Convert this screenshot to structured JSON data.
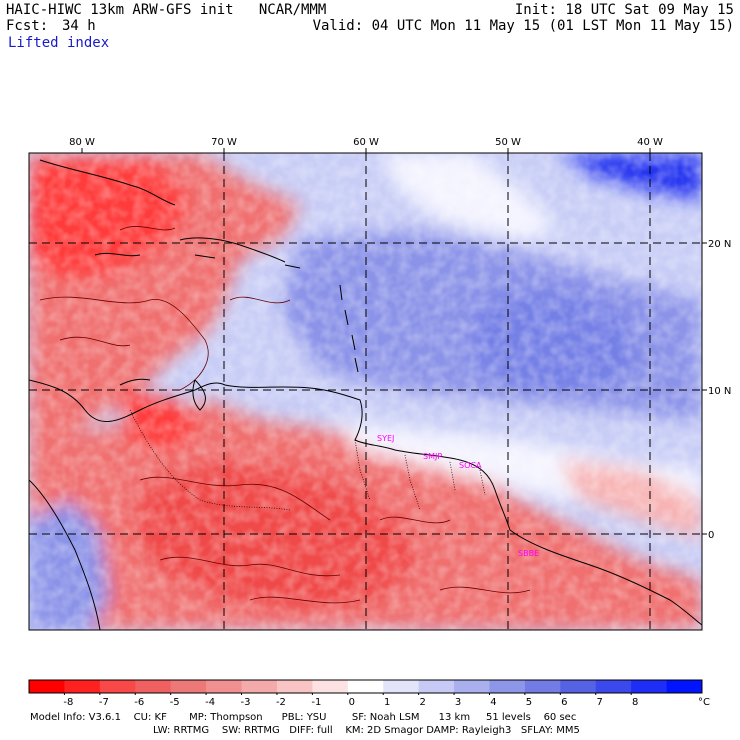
{
  "header": {
    "model_line": "HAIC-HIWC 13km ARW-GFS init   NCAR/MMM",
    "init_line": "Init: 18 UTC Sat 09 May 15",
    "fcst_label": "Fcst:",
    "fcst_value": "34 h",
    "valid_line": "Valid: 04 UTC Mon 11 May 15 (01 LST Mon 11 May 15)",
    "field_name": "Lifted index"
  },
  "map": {
    "longitude_labels": [
      "80 W",
      "70 W",
      "60 W",
      "50 W",
      "40 W"
    ],
    "latitude_labels": [
      "20 N",
      "10 N",
      "0"
    ],
    "stations": [
      "SYEJ",
      "SMJP",
      "SOCA",
      "SBBE"
    ],
    "colors": {
      "strong_negative": "#ff3a3a",
      "negative": "#f07070",
      "weak_negative": "#f8b4b4",
      "neutral": "#f4f4ff",
      "weak_positive": "#c8cdf6",
      "positive": "#8b93e8",
      "strong_positive": "#2030f0",
      "coastline": "#000000",
      "contour": "#6a0000"
    }
  },
  "colorbar": {
    "tick_labels": [
      "-8",
      "-7",
      "-6",
      "-5",
      "-4",
      "-3",
      "-2",
      "-1",
      "0",
      "1",
      "2",
      "3",
      "4",
      "5",
      "6",
      "7",
      "8"
    ],
    "unit": "°C",
    "colors": [
      "#ff0000",
      "#ff2020",
      "#f84848",
      "#f06060",
      "#ec7878",
      "#f09090",
      "#f4aaaa",
      "#f8c4c4",
      "#fce2e2",
      "#ffffff",
      "#e2e4fa",
      "#c6caf4",
      "#aab0ee",
      "#8e96e8",
      "#727ce4",
      "#5662e4",
      "#3a48ec",
      "#1e2ef6",
      "#0014ff"
    ]
  },
  "footer": {
    "line1": "Model Info: V3.6.1    CU: KF       MP: Thompson      PBL: YSU        SF: Noah LSM      13 km     51 levels    60 sec",
    "line2": "LW: RRTMG    SW: RRTMG   DIFF: full    KM: 2D Smagor DAMP: Rayleigh3   SFLAY: MM5"
  }
}
